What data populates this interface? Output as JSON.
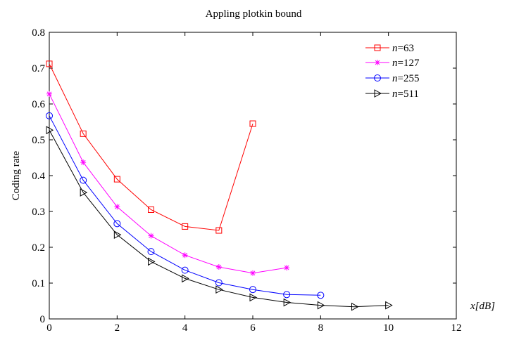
{
  "chart_data": {
    "type": "line",
    "title": "Appling plotkin bound",
    "xlabel": "x[dB]",
    "ylabel": "Coding rate",
    "xlim": [
      0,
      12
    ],
    "ylim": [
      0,
      0.8
    ],
    "xticks": [
      "0",
      "2",
      "4",
      "6",
      "8",
      "10",
      "12"
    ],
    "yticks": [
      "0",
      "0.1",
      "0.2",
      "0.3",
      "0.4",
      "0.5",
      "0.6",
      "0.7",
      "0.8"
    ],
    "grid": false,
    "legend_position": "top-right",
    "series": [
      {
        "name": "n=63",
        "name_italic": "n",
        "name_rest": "=63",
        "color": "#ff0000",
        "marker": "square",
        "x": [
          0,
          1,
          2,
          3,
          4,
          5,
          6
        ],
        "y": [
          0.712,
          0.517,
          0.39,
          0.305,
          0.258,
          0.247,
          0.545
        ]
      },
      {
        "name": "n=127",
        "name_italic": "n",
        "name_rest": "=127",
        "color": "#ff00ff",
        "marker": "star",
        "x": [
          0,
          1,
          2,
          3,
          4,
          5,
          6,
          7
        ],
        "y": [
          0.628,
          0.437,
          0.313,
          0.232,
          0.178,
          0.145,
          0.128,
          0.143
        ]
      },
      {
        "name": "n=255",
        "name_italic": "n",
        "name_rest": "=255",
        "color": "#0000ff",
        "marker": "circle",
        "x": [
          0,
          1,
          2,
          3,
          4,
          5,
          6,
          7,
          8
        ],
        "y": [
          0.567,
          0.387,
          0.266,
          0.188,
          0.136,
          0.101,
          0.082,
          0.068,
          0.066
        ]
      },
      {
        "name": "n=511",
        "name_italic": "n",
        "name_rest": "=511",
        "color": "#000000",
        "marker": "triangle-right",
        "x": [
          0,
          1,
          2,
          3,
          4,
          5,
          6,
          7,
          8,
          9,
          10
        ],
        "y": [
          0.527,
          0.353,
          0.235,
          0.16,
          0.113,
          0.082,
          0.06,
          0.046,
          0.038,
          0.034,
          0.038
        ]
      }
    ]
  }
}
